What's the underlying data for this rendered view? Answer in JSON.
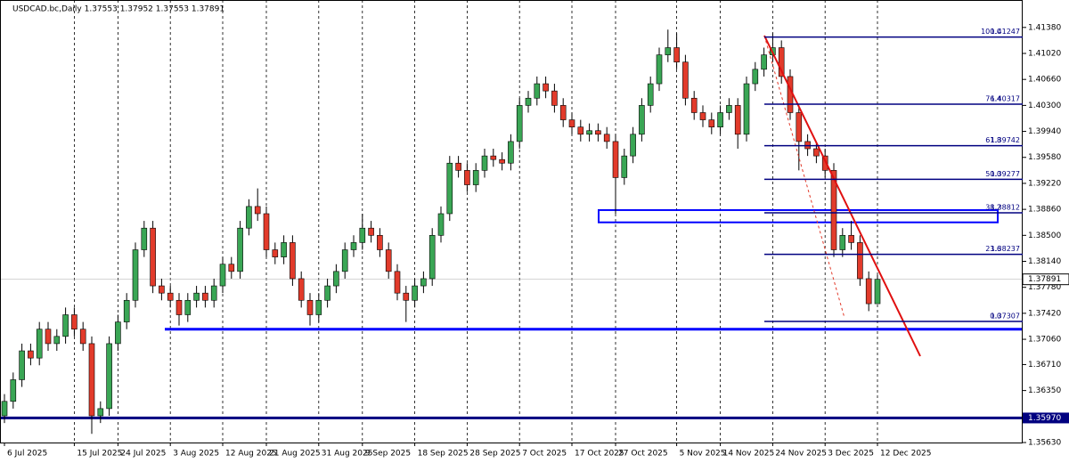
{
  "chart_data": {
    "type": "candlestick",
    "title": "USDCAD.bc,Daily  1.37553 1.37952 1.37553 1.37891",
    "categories": [
      "6 Jul 2025",
      null,
      null,
      null,
      null,
      null,
      null,
      null,
      "15 Jul 2025",
      null,
      null,
      null,
      null,
      "24 Jul 2025",
      null,
      null,
      null,
      null,
      null,
      "3 Aug 2025",
      null,
      null,
      null,
      null,
      null,
      "12 Aug 2025",
      null,
      null,
      null,
      null,
      "21 Aug 2025",
      null,
      null,
      null,
      null,
      null,
      "31 Aug 2025",
      null,
      null,
      null,
      null,
      "9 Sep 2025",
      null,
      null,
      null,
      null,
      null,
      "18 Sep 2025",
      null,
      null,
      null,
      null,
      null,
      "28 Sep 2025",
      null,
      null,
      null,
      null,
      null,
      "7 Oct 2025",
      null,
      null,
      null,
      null,
      null,
      "17 Oct 2025",
      null,
      null,
      null,
      null,
      "27 Oct 2025",
      null,
      null,
      null,
      null,
      null,
      null,
      "5 Nov 2025",
      null,
      null,
      null,
      null,
      "14 Nov 2025",
      null,
      null,
      null,
      null,
      null,
      "24 Nov 2025",
      null,
      null,
      null,
      null,
      null,
      "3 Dec 2025",
      null,
      null,
      null,
      null,
      null,
      "12 Dec 2025"
    ],
    "open": [
      1.36,
      1.362,
      1.365,
      1.369,
      1.368,
      1.372,
      1.37,
      1.371,
      1.374,
      1.372,
      1.37,
      1.36,
      1.361,
      1.37,
      1.373,
      1.376,
      1.383,
      1.386,
      1.378,
      1.377,
      1.376,
      1.374,
      1.376,
      1.377,
      1.376,
      1.378,
      1.381,
      1.38,
      1.386,
      1.389,
      1.388,
      1.383,
      1.382,
      1.384,
      1.379,
      1.376,
      1.374,
      1.376,
      1.378,
      1.38,
      1.383,
      1.384,
      1.386,
      1.385,
      1.383,
      1.38,
      1.377,
      1.376,
      1.378,
      1.379,
      1.385,
      1.388,
      1.395,
      1.394,
      1.392,
      1.394,
      1.396,
      1.3955,
      1.395,
      1.398,
      1.403,
      1.404,
      1.406,
      1.405,
      1.403,
      1.401,
      1.4,
      1.399,
      1.3995,
      1.399,
      1.398,
      1.393,
      1.396,
      1.399,
      1.403,
      1.406,
      1.41,
      1.411,
      1.409,
      1.404,
      1.402,
      1.401,
      1.4,
      1.402,
      1.403,
      1.399,
      1.406,
      1.408,
      1.41,
      1.411,
      1.407,
      1.402,
      1.398,
      1.397,
      1.396,
      1.394,
      1.383,
      1.385,
      1.384,
      1.379,
      1.37553
    ],
    "high": [
      1.363,
      1.366,
      1.37,
      1.37,
      1.373,
      1.373,
      1.372,
      1.375,
      1.375,
      1.373,
      1.371,
      1.362,
      1.371,
      1.374,
      1.377,
      1.384,
      1.387,
      1.387,
      1.379,
      1.378,
      1.377,
      1.377,
      1.378,
      1.378,
      1.379,
      1.382,
      1.382,
      1.387,
      1.39,
      1.3915,
      1.389,
      1.384,
      1.385,
      1.385,
      1.38,
      1.377,
      1.377,
      1.379,
      1.381,
      1.384,
      1.385,
      1.388,
      1.387,
      1.386,
      1.384,
      1.381,
      1.378,
      1.379,
      1.38,
      1.386,
      1.389,
      1.396,
      1.396,
      1.395,
      1.395,
      1.397,
      1.397,
      1.3965,
      1.399,
      1.404,
      1.405,
      1.407,
      1.407,
      1.406,
      1.404,
      1.402,
      1.401,
      1.4005,
      1.4005,
      1.4,
      1.399,
      1.397,
      1.4,
      1.404,
      1.407,
      1.411,
      1.4135,
      1.413,
      1.41,
      1.405,
      1.403,
      1.402,
      1.403,
      1.404,
      1.404,
      1.407,
      1.409,
      1.411,
      1.413,
      1.412,
      1.408,
      1.403,
      1.399,
      1.398,
      1.397,
      1.395,
      1.386,
      1.387,
      1.385,
      1.38,
      1.37952
    ],
    "low": [
      1.359,
      1.361,
      1.364,
      1.367,
      1.367,
      1.369,
      1.369,
      1.37,
      1.371,
      1.369,
      1.3575,
      1.359,
      1.36,
      1.369,
      1.372,
      1.375,
      1.382,
      1.377,
      1.376,
      1.375,
      1.3725,
      1.373,
      1.375,
      1.375,
      1.375,
      1.377,
      1.379,
      1.379,
      1.385,
      1.387,
      1.382,
      1.381,
      1.381,
      1.378,
      1.375,
      1.3725,
      1.373,
      1.375,
      1.377,
      1.379,
      1.382,
      1.383,
      1.384,
      1.382,
      1.379,
      1.376,
      1.373,
      1.375,
      1.377,
      1.378,
      1.384,
      1.387,
      1.393,
      1.391,
      1.391,
      1.393,
      1.3945,
      1.394,
      1.394,
      1.397,
      1.402,
      1.403,
      1.404,
      1.402,
      1.4,
      1.399,
      1.398,
      1.398,
      1.398,
      1.397,
      1.388,
      1.392,
      1.395,
      1.398,
      1.402,
      1.405,
      1.409,
      1.408,
      1.403,
      1.401,
      1.4,
      1.399,
      1.399,
      1.401,
      1.397,
      1.398,
      1.405,
      1.407,
      1.409,
      1.406,
      1.401,
      1.394,
      1.396,
      1.395,
      1.393,
      1.382,
      1.382,
      1.383,
      1.378,
      1.3745,
      1.37553
    ],
    "close": [
      1.362,
      1.365,
      1.369,
      1.368,
      1.372,
      1.37,
      1.371,
      1.374,
      1.372,
      1.37,
      1.36,
      1.361,
      1.37,
      1.373,
      1.376,
      1.383,
      1.386,
      1.378,
      1.377,
      1.376,
      1.374,
      1.376,
      1.377,
      1.376,
      1.378,
      1.381,
      1.38,
      1.386,
      1.389,
      1.388,
      1.383,
      1.382,
      1.384,
      1.379,
      1.376,
      1.374,
      1.376,
      1.378,
      1.38,
      1.383,
      1.384,
      1.386,
      1.385,
      1.383,
      1.38,
      1.377,
      1.376,
      1.378,
      1.379,
      1.385,
      1.388,
      1.395,
      1.394,
      1.392,
      1.394,
      1.396,
      1.3955,
      1.395,
      1.398,
      1.403,
      1.404,
      1.406,
      1.405,
      1.403,
      1.401,
      1.4,
      1.399,
      1.3995,
      1.399,
      1.398,
      1.393,
      1.396,
      1.399,
      1.403,
      1.406,
      1.41,
      1.411,
      1.409,
      1.404,
      1.402,
      1.401,
      1.4,
      1.402,
      1.403,
      1.399,
      1.406,
      1.408,
      1.41,
      1.411,
      1.407,
      1.402,
      1.398,
      1.397,
      1.396,
      1.394,
      1.383,
      1.385,
      1.384,
      1.379,
      1.37553,
      1.37891
    ],
    "up_color": "#3aa655",
    "down_color": "#e23b2b",
    "wick_color": "#000000",
    "ylim": [
      1.3563,
      1.4176
    ],
    "yticks": [
      {
        "value": 1.4138,
        "label": "1.41380"
      },
      {
        "value": 1.4102,
        "label": "1.41020"
      },
      {
        "value": 1.4066,
        "label": "1.40660"
      },
      {
        "value": 1.403,
        "label": "1.40300"
      },
      {
        "value": 1.3994,
        "label": "1.39940"
      },
      {
        "value": 1.3958,
        "label": "1.39580"
      },
      {
        "value": 1.3922,
        "label": "1.39220"
      },
      {
        "value": 1.3886,
        "label": "1.38860"
      },
      {
        "value": 1.385,
        "label": "1.38500"
      },
      {
        "value": 1.3814,
        "label": "1.38140"
      },
      {
        "value": 1.3778,
        "label": "1.37780"
      },
      {
        "value": 1.3742,
        "label": "1.37420"
      },
      {
        "value": 1.3706,
        "label": "1.37060"
      },
      {
        "value": 1.3671,
        "label": "1.36710"
      },
      {
        "value": 1.3635,
        "label": "1.36350"
      },
      {
        "value": 1.3563,
        "label": "1.35630"
      }
    ],
    "grid": true,
    "fibonacci": {
      "color": "#000080",
      "levels": [
        {
          "level": "100.0",
          "price": 1.41247
        },
        {
          "level": "76.4",
          "price": 1.40317
        },
        {
          "level": "61.8",
          "price": 1.39742
        },
        {
          "level": "50.0",
          "price": 1.39277
        },
        {
          "level": "38.2",
          "price": 1.38812
        },
        {
          "level": "23.6",
          "price": 1.38237
        },
        {
          "level": "0.0",
          "price": 1.37307
        }
      ]
    },
    "hlines": [
      {
        "value": 1.372,
        "color": "#0000ff"
      },
      {
        "value": 1.3597,
        "label": "1.35970",
        "color": "#000080"
      }
    ],
    "zone": {
      "low": 1.3868,
      "high": 1.3885,
      "color": "#0000ff"
    }
  }
}
